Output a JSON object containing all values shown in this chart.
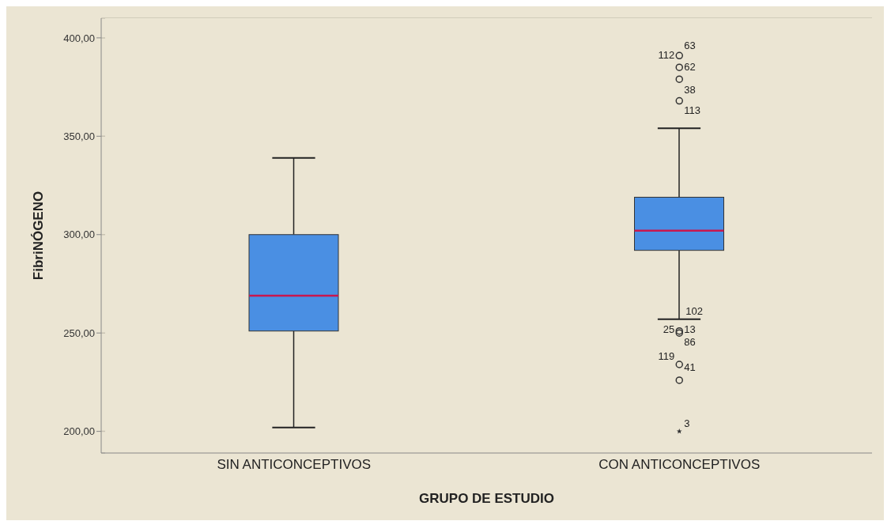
{
  "chart_data": {
    "type": "box",
    "xlabel": "GRUPO DE ESTUDIO",
    "ylabel": "FibriNÓGENO",
    "categories": [
      "SIN ANTICONCEPTIVOS",
      "CON ANTICONCEPTIVOS"
    ],
    "series": [
      {
        "color": "#4a8fe3",
        "boxes": [
          {
            "low": 202,
            "q1": 251,
            "median": 269,
            "q3": 300,
            "high": 339
          },
          {
            "low": 257,
            "q1": 292,
            "median": 302,
            "q3": 319,
            "high": 354,
            "outliers": [
              391,
              385,
              379,
              368,
              251,
              250,
              234,
              226,
              200
            ]
          }
        ]
      }
    ],
    "ylim": [
      189,
      410
    ],
    "yticks": [
      {
        "value": 200,
        "label": "200,00"
      },
      {
        "value": 250,
        "label": "250,00"
      },
      {
        "value": 300,
        "label": "300,00"
      },
      {
        "value": 350,
        "label": "350,00"
      },
      {
        "value": 400,
        "label": "400,00"
      }
    ],
    "grid": "y",
    "annotations": [
      "63",
      "112",
      "62",
      "38",
      "113",
      "102",
      "13",
      "25",
      "86",
      "41",
      "119",
      "3"
    ]
  }
}
